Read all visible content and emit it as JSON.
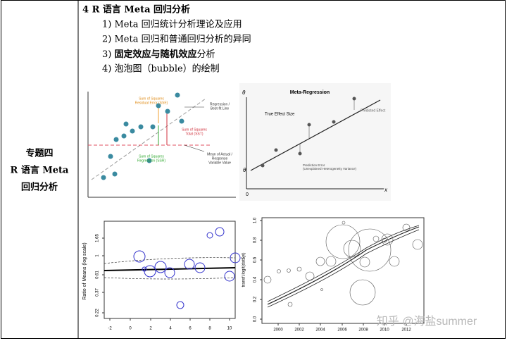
{
  "table": {
    "left": [
      "专题四",
      "R 语言 Meta",
      "回归分析"
    ],
    "heading": "4 R 语言 Meta 回归分析",
    "items": [
      "1) Meta 回归统计分析理论及应用",
      "2) Meta 回归和普通回归分析的异同",
      [
        "3) ",
        "固定效应与随机效应",
        "分析"
      ],
      "4) 泡泡图（bubble）的绘制"
    ]
  },
  "figures": [
    {
      "sse": [
        "Sum of Squares",
        "Residual Error (SSE)"
      ],
      "sst": [
        "Sum of Squares",
        "Total (SST)"
      ],
      "ssr": [
        "Sum of Squares",
        "Regression (SSR)"
      ],
      "line": [
        "Regression /",
        "Best-fit Line"
      ],
      "mean": [
        "Mean of Actual /",
        "Response",
        "Variable Value"
      ]
    },
    {
      "title": "Meta-Regression",
      "true_effect": "True Effect Size",
      "predicted": "Predicted Effect",
      "error": [
        "Prediction Error",
        "(Unexplained Heterogeneity Variance)"
      ],
      "theta_top": "θ",
      "theta": "θ",
      "origin": "0",
      "x": "x"
    },
    {
      "ylabel": "Ratio of Means (log scale)",
      "yticks": [
        "0.22",
        "0.37",
        "0.61",
        "1",
        "1.65"
      ],
      "xticks": [
        "-2",
        "0",
        "2",
        "4",
        "6",
        "8",
        "10"
      ]
    },
    {
      "ylabel": "transf.ilogit(dat$yi)",
      "yticks": [
        "0.0",
        "0.2",
        "0.4",
        "0.6",
        "0.8",
        "1.0"
      ],
      "xticks": [
        "2000",
        "2002",
        "2004",
        "2006",
        "2008",
        "2010",
        "2012"
      ]
    }
  ],
  "watermark": "知乎 @海盐summer"
}
